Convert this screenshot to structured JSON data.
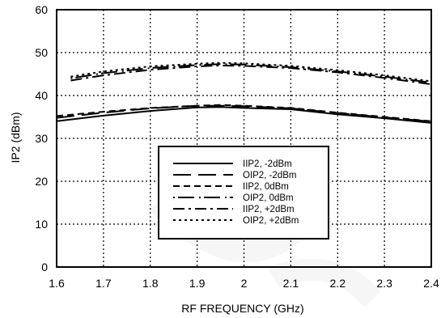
{
  "chart_data": {
    "type": "line",
    "title": "",
    "xlabel": "RF FREQUENCY (GHz)",
    "ylabel": "IP2 (dBm)",
    "xlim": [
      1.6,
      2.4
    ],
    "ylim": [
      0,
      60
    ],
    "x_ticks": [
      "1.6",
      "1.7",
      "1.8",
      "1.9",
      "2",
      "2.1",
      "2.2",
      "2.3",
      "2.4"
    ],
    "y_ticks": [
      "0",
      "10",
      "20",
      "30",
      "40",
      "50",
      "60"
    ],
    "grid": true,
    "grid_style": "dotted",
    "legend_position": "bottom-center",
    "series": [
      {
        "name": "IIP2, -2dBm",
        "dash": "solid",
        "x": [
          1.6,
          1.7,
          1.8,
          1.9,
          1.95,
          2.0,
          2.1,
          2.2,
          2.3,
          2.4
        ],
        "y": [
          34.0,
          35.3,
          36.4,
          37.2,
          37.3,
          37.1,
          36.8,
          35.6,
          34.7,
          33.6
        ]
      },
      {
        "name": "OIP2, -2dBm",
        "dash": "long-dash",
        "x": [
          1.6,
          1.7,
          1.8,
          1.9,
          1.95,
          2.0,
          2.1,
          2.2,
          2.3,
          2.4
        ],
        "y": [
          34.8,
          36.0,
          37.0,
          37.6,
          37.6,
          37.5,
          37.0,
          35.9,
          34.9,
          33.9
        ]
      },
      {
        "name": "IIP2, 0dBm",
        "dash": "short-dash",
        "x": [
          1.6,
          1.7,
          1.8,
          1.9,
          1.95,
          2.0,
          2.1,
          2.2,
          2.3,
          2.4
        ],
        "y": [
          35.2,
          36.2,
          37.1,
          37.6,
          37.8,
          37.6,
          37.1,
          36.0,
          35.0,
          34.0
        ]
      },
      {
        "name": "OIP2, 0dBm",
        "dash": "dot-long-dash",
        "x": [
          1.63,
          1.7,
          1.8,
          1.9,
          1.95,
          2.0,
          2.1,
          2.2,
          2.3,
          2.4
        ],
        "y": [
          44.0,
          45.2,
          46.4,
          47.1,
          47.3,
          47.2,
          46.6,
          45.6,
          44.4,
          43.0
        ]
      },
      {
        "name": "IIP2, +2dBm",
        "dash": "dash-dot",
        "x": [
          1.63,
          1.7,
          1.8,
          1.9,
          1.95,
          2.0,
          2.1,
          2.2,
          2.3,
          2.4
        ],
        "y": [
          43.5,
          44.7,
          46.0,
          46.8,
          47.0,
          46.9,
          46.4,
          45.4,
          44.1,
          42.6
        ]
      },
      {
        "name": "OIP2, +2dBm",
        "dash": "dotted",
        "x": [
          1.63,
          1.7,
          1.8,
          1.9,
          1.95,
          2.0,
          2.1,
          2.2,
          2.3,
          2.4
        ],
        "y": [
          44.4,
          45.6,
          46.8,
          47.4,
          47.6,
          47.5,
          46.9,
          45.9,
          44.7,
          43.3
        ]
      }
    ]
  }
}
